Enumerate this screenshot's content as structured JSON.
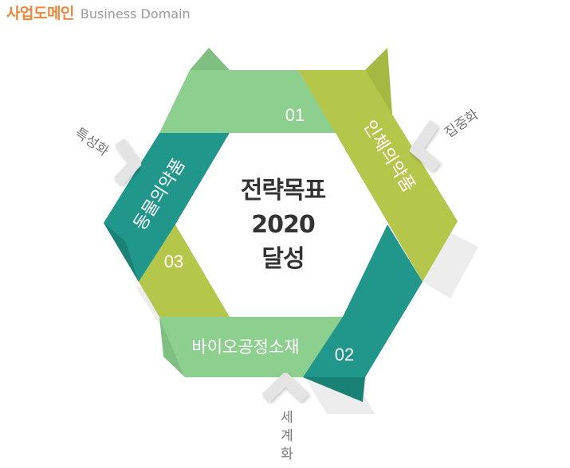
{
  "header": {
    "title_ko": "사업도메인",
    "title_en": "Business Domain"
  },
  "center": {
    "line1": "전략목표",
    "line2": "2020",
    "line3": "달성"
  },
  "segments": {
    "top_number": "01",
    "right_label": "인체의약품",
    "right_number": "02",
    "bottom_label": "바이오공정소재",
    "left_label": "동물의약품",
    "left_number": "03"
  },
  "arrows": {
    "left_label": "특성화",
    "right_label": "집중화",
    "bottom_label_1": "세",
    "bottom_label_2": "계",
    "bottom_label_3": "화"
  },
  "colors": {
    "light_green": "#8dcf8f",
    "olive_green": "#b4c74b",
    "teal": "#21968a",
    "accent_orange": "#f0873a"
  }
}
